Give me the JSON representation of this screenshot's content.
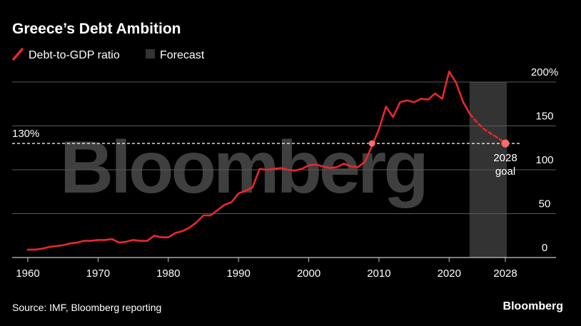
{
  "chart_data": {
    "type": "line",
    "title": "Greece’s Debt Ambition",
    "legend": [
      {
        "label": "Debt-to-GDP ratio",
        "color": "#e8282b",
        "kind": "line"
      },
      {
        "label": "Forecast",
        "color": "#333333",
        "kind": "box"
      }
    ],
    "xlabel": "",
    "ylabel": "",
    "xlim": [
      1958,
      2032
    ],
    "ylim": [
      0,
      200
    ],
    "x_ticks": [
      "1960",
      "1970",
      "1980",
      "1990",
      "2000",
      "2010",
      "2020",
      "2028"
    ],
    "x_tick_values": [
      1960,
      1970,
      1980,
      1990,
      2000,
      2010,
      2020,
      2028
    ],
    "y_ticks": [
      "0",
      "50",
      "100",
      "150",
      "200%"
    ],
    "y_tick_values": [
      0,
      50,
      100,
      150,
      200
    ],
    "forecast_range": [
      2023,
      2028
    ],
    "reference_line": {
      "value": 130,
      "label": "130%"
    },
    "goal_annotation": {
      "label_line1": "2028",
      "label_line2": "goal",
      "x": 2028,
      "y": 130
    },
    "series": [
      {
        "name": "Debt-to-GDP ratio",
        "x": [
          1960,
          1961,
          1962,
          1963,
          1964,
          1965,
          1966,
          1967,
          1968,
          1969,
          1970,
          1971,
          1972,
          1973,
          1974,
          1975,
          1976,
          1977,
          1978,
          1979,
          1980,
          1981,
          1982,
          1983,
          1984,
          1985,
          1986,
          1987,
          1988,
          1989,
          1990,
          1991,
          1992,
          1993,
          1994,
          1995,
          1996,
          1997,
          1998,
          1999,
          2000,
          2001,
          2002,
          2003,
          2004,
          2005,
          2006,
          2007,
          2008,
          2009,
          2010,
          2011,
          2012,
          2013,
          2014,
          2015,
          2016,
          2017,
          2018,
          2019,
          2020,
          2021,
          2022,
          2023
        ],
        "values": [
          9,
          9,
          10,
          12,
          13,
          14,
          16,
          17,
          19,
          19,
          20,
          20,
          21,
          17,
          18,
          20,
          19,
          19,
          25,
          23,
          23,
          28,
          30,
          34,
          40,
          48,
          48,
          54,
          60,
          63,
          73,
          76,
          80,
          101,
          100,
          101,
          102,
          100,
          99,
          101,
          105,
          106,
          104,
          102,
          103,
          107,
          104,
          103,
          109,
          127,
          146,
          172,
          160,
          177,
          179,
          177,
          181,
          180,
          187,
          181,
          212,
          199,
          177,
          163
        ]
      },
      {
        "name": "Forecast path",
        "x": [
          2023,
          2024,
          2025,
          2026,
          2027,
          2028
        ],
        "values": [
          163,
          154,
          146,
          141,
          136,
          130
        ],
        "dashed": true
      }
    ]
  },
  "source": "Source: IMF, Bloomberg reporting",
  "brand": "Bloomberg",
  "watermark": "Bloomberg",
  "colors": {
    "background": "#000000",
    "line": "#e8282b",
    "forecast_band": "#333333",
    "grid": "#5a5a5a",
    "text": "#ffffff"
  }
}
